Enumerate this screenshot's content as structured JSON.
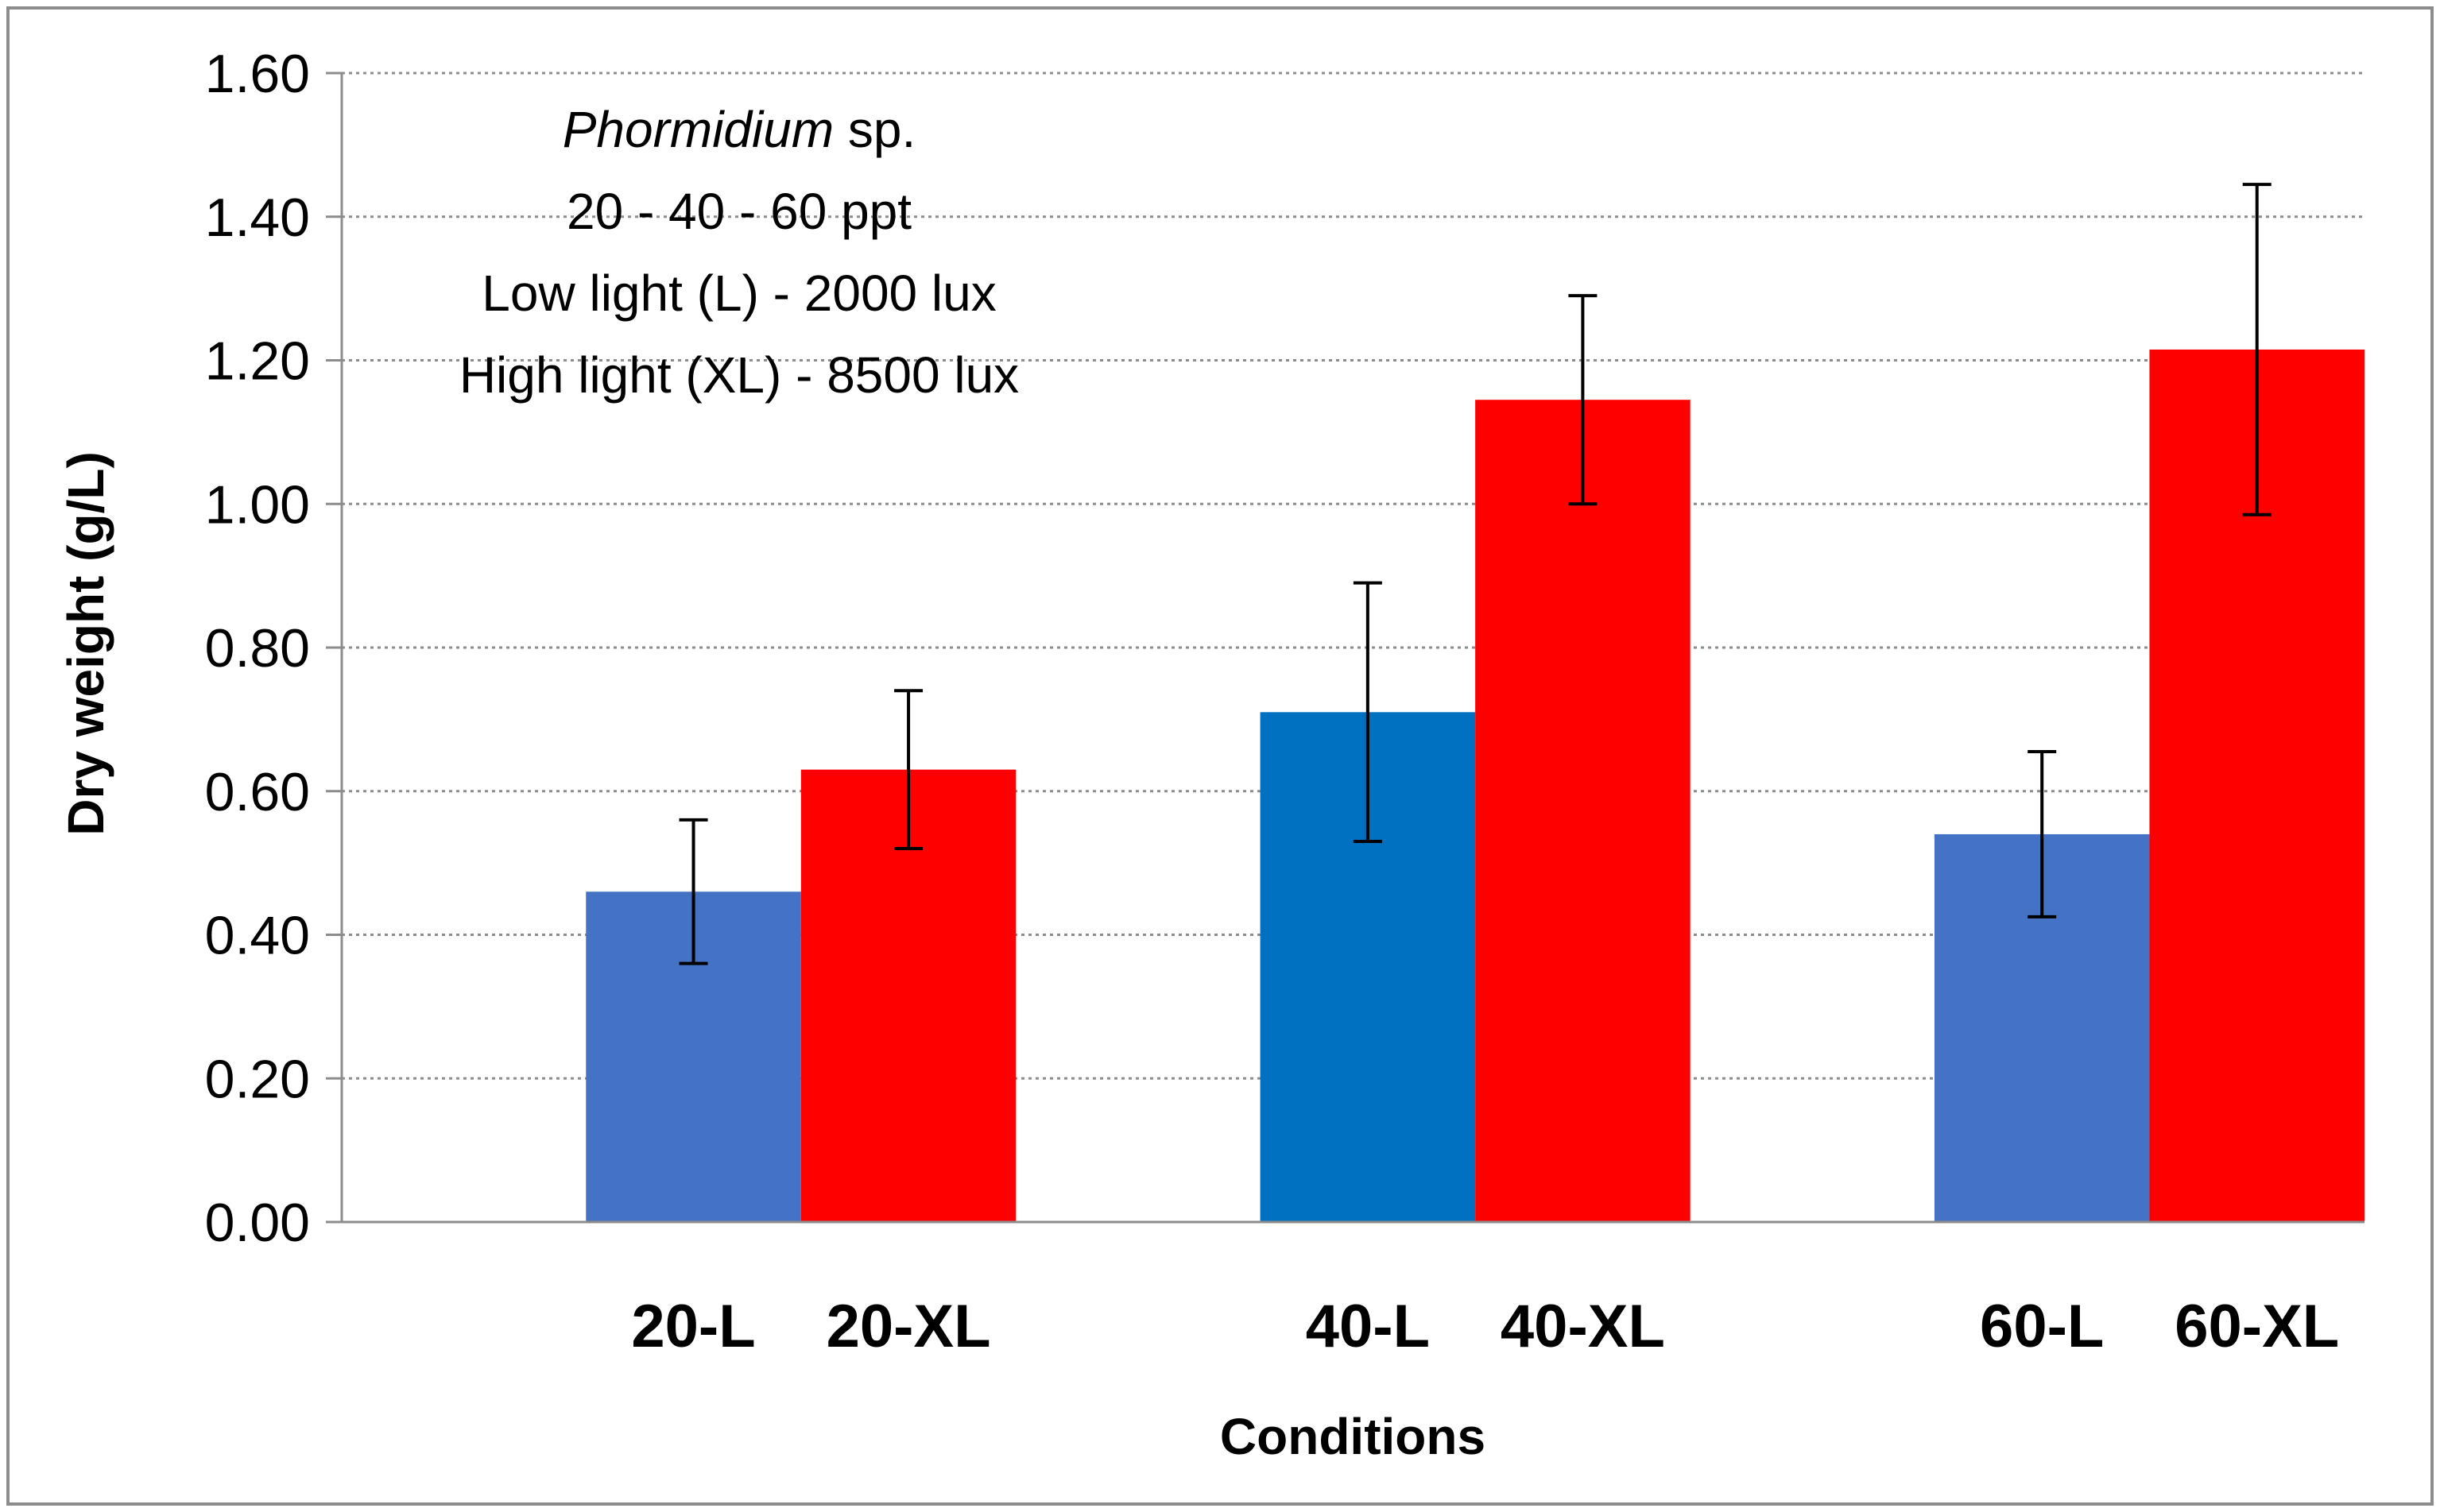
{
  "chart_data": {
    "type": "bar",
    "title": "",
    "xlabel": "Conditions",
    "ylabel": "Dry weight (g/L)",
    "ylim": [
      0,
      1.6
    ],
    "yticks": [
      "0.00",
      "0.20",
      "0.40",
      "0.60",
      "0.80",
      "1.00",
      "1.20",
      "1.40",
      "1.60"
    ],
    "grid": true,
    "groups": [
      "20",
      "40",
      "60"
    ],
    "bars": [
      {
        "label": "20-L",
        "value": 0.46,
        "error": 0.1,
        "color": "#4472C4"
      },
      {
        "label": "20-XL",
        "value": 0.63,
        "error": 0.11,
        "color": "#FF0000"
      },
      {
        "label": "40-L",
        "value": 0.71,
        "error": 0.18,
        "color": "#0070C0"
      },
      {
        "label": "40-XL",
        "value": 1.145,
        "error": 0.145,
        "color": "#FF0000"
      },
      {
        "label": "60-L",
        "value": 0.54,
        "error": 0.115,
        "color": "#4472C4"
      },
      {
        "label": "60-XL",
        "value": 1.215,
        "error": 0.23,
        "color": "#FF0000"
      }
    ],
    "annotation": {
      "line1_italic": "Phormidium",
      "line1_rest": " sp.",
      "line2": "20 - 40 - 60 ppt",
      "line3": "Low light (L) - 2000 lux",
      "line4": "High light (XL) - 8500 lux"
    }
  }
}
